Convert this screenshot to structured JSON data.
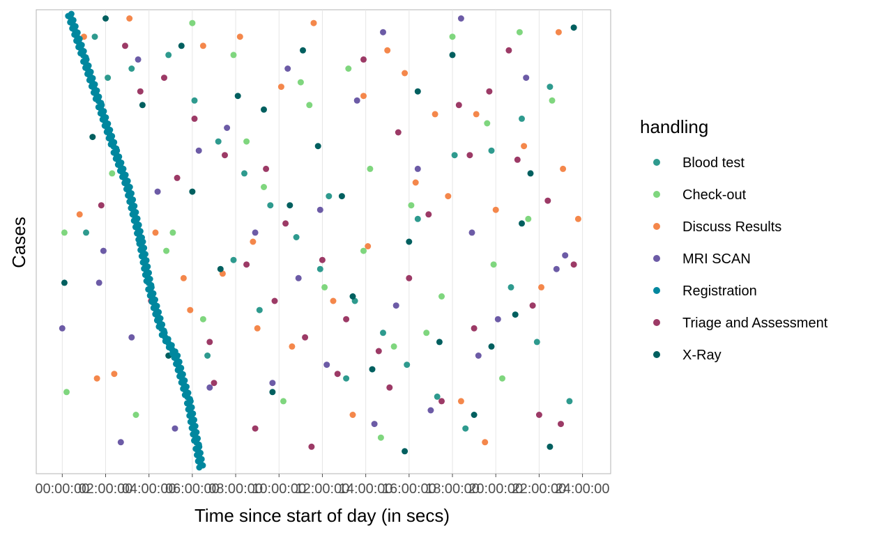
{
  "chart_data": {
    "type": "scatter",
    "title": "",
    "xlabel": "Time since start of day (in secs)",
    "ylabel": "Cases",
    "x_ticks": [
      "00:00:00",
      "02:00:00",
      "04:00:00",
      "06:00:00",
      "08:00:00",
      "10:00:00",
      "12:00:00",
      "14:00:00",
      "16:00:00",
      "18:00:00",
      "20:00:00",
      "22:00:00",
      "24:00:00"
    ],
    "x_tick_hours": [
      0,
      2,
      4,
      6,
      8,
      10,
      12,
      14,
      16,
      18,
      20,
      22,
      24
    ],
    "xlim_hours": [
      -1.2,
      25.3
    ],
    "legend": {
      "title": "handling",
      "placement": "right",
      "entries": [
        {
          "label": "Blood test",
          "color": "#2E9A8E"
        },
        {
          "label": "Check-out",
          "color": "#7FD67E"
        },
        {
          "label": "Discuss Results",
          "color": "#F4874B"
        },
        {
          "label": "MRI SCAN",
          "color": "#6C5BA6"
        },
        {
          "label": "Registration",
          "color": "#00879E"
        },
        {
          "label": "Triage and Assessment",
          "color": "#9C3A66"
        },
        {
          "label": "X-Ray",
          "color": "#005F5F"
        }
      ]
    },
    "grid": "vertical",
    "series": [
      {
        "name": "Blood test",
        "points": [
          [
            1.5,
            0.95
          ],
          [
            3.2,
            0.88
          ],
          [
            4.9,
            0.91
          ],
          [
            2.1,
            0.86
          ],
          [
            6.1,
            0.81
          ],
          [
            7.2,
            0.72
          ],
          [
            8.4,
            0.65
          ],
          [
            9.6,
            0.58
          ],
          [
            10.8,
            0.51
          ],
          [
            11.9,
            0.44
          ],
          [
            13.5,
            0.37
          ],
          [
            14.8,
            0.3
          ],
          [
            15.9,
            0.23
          ],
          [
            17.3,
            0.16
          ],
          [
            18.6,
            0.09
          ],
          [
            19.8,
            0.7
          ],
          [
            21.2,
            0.77
          ],
          [
            22.5,
            0.84
          ],
          [
            23.4,
            0.15
          ],
          [
            6.7,
            0.25
          ],
          [
            9.1,
            0.35
          ],
          [
            12.3,
            0.6
          ],
          [
            16.4,
            0.55
          ],
          [
            20.7,
            0.4
          ],
          [
            4.4,
            0.33
          ],
          [
            1.1,
            0.52
          ],
          [
            7.9,
            0.46
          ],
          [
            13.1,
            0.2
          ],
          [
            18.1,
            0.69
          ],
          [
            21.9,
            0.28
          ]
        ]
      },
      {
        "name": "Check-out",
        "points": [
          [
            0.1,
            0.52
          ],
          [
            2.3,
            0.65
          ],
          [
            4.8,
            0.48
          ],
          [
            6.5,
            0.33
          ],
          [
            7.9,
            0.91
          ],
          [
            9.3,
            0.62
          ],
          [
            11.4,
            0.8
          ],
          [
            13.2,
            0.88
          ],
          [
            14.7,
            0.07
          ],
          [
            16.1,
            0.58
          ],
          [
            18.0,
            0.95
          ],
          [
            19.6,
            0.76
          ],
          [
            21.1,
            0.96
          ],
          [
            22.6,
            0.81
          ],
          [
            0.2,
            0.17
          ],
          [
            5.1,
            0.52
          ],
          [
            8.5,
            0.72
          ],
          [
            12.1,
            0.4
          ],
          [
            15.3,
            0.27
          ],
          [
            17.5,
            0.38
          ],
          [
            19.9,
            0.45
          ],
          [
            21.5,
            0.55
          ],
          [
            3.4,
            0.12
          ],
          [
            10.2,
            0.15
          ],
          [
            13.9,
            0.48
          ],
          [
            16.8,
            0.3
          ],
          [
            20.3,
            0.2
          ],
          [
            6.0,
            0.98
          ],
          [
            11.0,
            0.85
          ],
          [
            14.2,
            0.66
          ]
        ]
      },
      {
        "name": "Discuss Results",
        "points": [
          [
            1.0,
            0.95
          ],
          [
            3.1,
            0.99
          ],
          [
            6.5,
            0.93
          ],
          [
            8.2,
            0.95
          ],
          [
            10.1,
            0.84
          ],
          [
            11.6,
            0.98
          ],
          [
            13.9,
            0.82
          ],
          [
            15.8,
            0.87
          ],
          [
            17.2,
            0.78
          ],
          [
            19.1,
            0.78
          ],
          [
            21.3,
            0.71
          ],
          [
            22.9,
            0.96
          ],
          [
            23.8,
            0.55
          ],
          [
            0.8,
            0.56
          ],
          [
            2.4,
            0.21
          ],
          [
            4.3,
            0.52
          ],
          [
            5.9,
            0.35
          ],
          [
            7.4,
            0.43
          ],
          [
            9.0,
            0.31
          ],
          [
            10.6,
            0.27
          ],
          [
            12.5,
            0.37
          ],
          [
            14.1,
            0.49
          ],
          [
            16.3,
            0.63
          ],
          [
            18.4,
            0.15
          ],
          [
            20.0,
            0.57
          ],
          [
            22.1,
            0.4
          ],
          [
            5.6,
            0.42
          ],
          [
            13.4,
            0.12
          ],
          [
            17.8,
            0.6
          ],
          [
            23.1,
            0.66
          ],
          [
            1.6,
            0.2
          ],
          [
            8.8,
            0.5
          ],
          [
            15.0,
            0.92
          ],
          [
            19.5,
            0.06
          ]
        ]
      },
      {
        "name": "MRI SCAN",
        "points": [
          [
            0.0,
            0.31
          ],
          [
            1.7,
            0.41
          ],
          [
            3.2,
            0.29
          ],
          [
            4.4,
            0.61
          ],
          [
            6.8,
            0.18
          ],
          [
            8.9,
            0.52
          ],
          [
            10.4,
            0.88
          ],
          [
            12.2,
            0.23
          ],
          [
            14.8,
            0.96
          ],
          [
            16.4,
            0.66
          ],
          [
            18.4,
            0.99
          ],
          [
            20.1,
            0.33
          ],
          [
            21.4,
            0.86
          ],
          [
            22.8,
            0.44
          ],
          [
            1.9,
            0.48
          ],
          [
            3.5,
            0.9
          ],
          [
            5.2,
            0.09
          ],
          [
            7.6,
            0.75
          ],
          [
            9.7,
            0.19
          ],
          [
            11.9,
            0.57
          ],
          [
            13.6,
            0.81
          ],
          [
            15.4,
            0.36
          ],
          [
            17.0,
            0.13
          ],
          [
            19.2,
            0.25
          ],
          [
            23.2,
            0.47
          ],
          [
            2.7,
            0.06
          ],
          [
            6.3,
            0.7
          ],
          [
            10.9,
            0.42
          ],
          [
            14.4,
            0.1
          ],
          [
            18.9,
            0.52
          ]
        ]
      },
      {
        "name": "Triage and Assessment",
        "points": [
          [
            1.8,
            0.58
          ],
          [
            2.9,
            0.93
          ],
          [
            4.7,
            0.86
          ],
          [
            6.1,
            0.77
          ],
          [
            7.5,
            0.69
          ],
          [
            8.5,
            0.45
          ],
          [
            9.8,
            0.37
          ],
          [
            11.2,
            0.29
          ],
          [
            12.7,
            0.21
          ],
          [
            13.9,
            0.9
          ],
          [
            15.5,
            0.74
          ],
          [
            16.9,
            0.56
          ],
          [
            18.3,
            0.8
          ],
          [
            19.7,
            0.83
          ],
          [
            21.0,
            0.68
          ],
          [
            22.4,
            0.59
          ],
          [
            23.6,
            0.45
          ],
          [
            3.6,
            0.83
          ],
          [
            5.3,
            0.64
          ],
          [
            7.0,
            0.19
          ],
          [
            8.9,
            0.09
          ],
          [
            10.3,
            0.54
          ],
          [
            12.0,
            0.46
          ],
          [
            13.1,
            0.33
          ],
          [
            14.6,
            0.26
          ],
          [
            16.0,
            0.42
          ],
          [
            17.5,
            0.15
          ],
          [
            19.0,
            0.31
          ],
          [
            20.6,
            0.92
          ],
          [
            22.0,
            0.12
          ],
          [
            4.1,
            0.37
          ],
          [
            6.8,
            0.28
          ],
          [
            9.4,
            0.66
          ],
          [
            11.5,
            0.05
          ],
          [
            15.1,
            0.18
          ],
          [
            18.8,
            0.69
          ],
          [
            21.7,
            0.36
          ],
          [
            23.0,
            0.1
          ]
        ]
      },
      {
        "name": "X-Ray",
        "points": [
          [
            0.1,
            0.41
          ],
          [
            2.0,
            0.99
          ],
          [
            3.7,
            0.8
          ],
          [
            4.9,
            0.25
          ],
          [
            6.0,
            0.61
          ],
          [
            8.1,
            0.82
          ],
          [
            9.3,
            0.79
          ],
          [
            11.1,
            0.92
          ],
          [
            12.9,
            0.6
          ],
          [
            14.3,
            0.22
          ],
          [
            16.4,
            0.83
          ],
          [
            18.0,
            0.91
          ],
          [
            19.8,
            0.27
          ],
          [
            21.2,
            0.54
          ],
          [
            23.6,
            0.97
          ],
          [
            1.4,
            0.73
          ],
          [
            5.5,
            0.93
          ],
          [
            7.3,
            0.44
          ],
          [
            9.7,
            0.17
          ],
          [
            11.8,
            0.71
          ],
          [
            13.4,
            0.38
          ],
          [
            15.8,
            0.04
          ],
          [
            17.4,
            0.28
          ],
          [
            19.0,
            0.12
          ],
          [
            20.9,
            0.34
          ],
          [
            22.5,
            0.05
          ],
          [
            3.1,
            0.6
          ],
          [
            10.5,
            0.58
          ],
          [
            16.0,
            0.5
          ],
          [
            21.6,
            0.65
          ]
        ]
      },
      {
        "name": "Registration",
        "points": [
          [
            0.3,
            1.0
          ],
          [
            1.0,
            0.9
          ],
          [
            1.7,
            0.8
          ],
          [
            2.4,
            0.7
          ],
          [
            3.0,
            0.62
          ],
          [
            3.6,
            0.5
          ],
          [
            4.0,
            0.4
          ],
          [
            4.6,
            0.3
          ],
          [
            5.2,
            0.25
          ],
          [
            5.8,
            0.15
          ],
          [
            6.2,
            0.05
          ],
          [
            6.4,
            0.0
          ]
        ]
      }
    ]
  }
}
